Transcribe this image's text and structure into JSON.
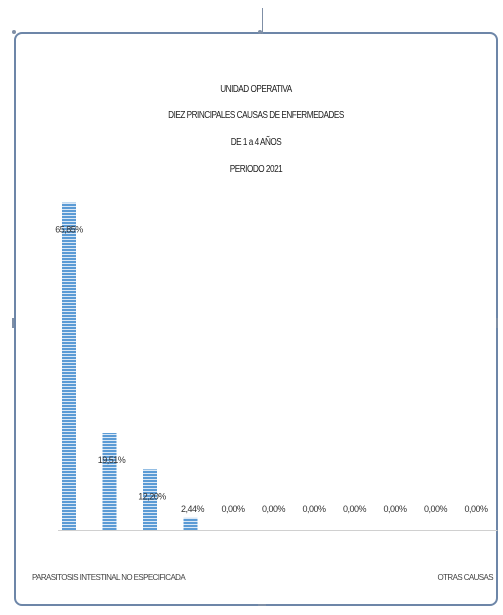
{
  "chart_data": {
    "type": "bar",
    "title_lines": [
      "UNIDAD OPERATIVA",
      "DIEZ PRINCIPALES CAUSAS DE ENFERMEDADES",
      "DE 1 a 4 AÑOS",
      "PERIODO 2021"
    ],
    "categories": [
      "PARASITOSIS INTESTINAL NO ESPECIFICADA",
      "",
      "",
      "",
      "",
      "",
      "",
      "",
      "",
      "",
      "OTRAS CAUSAS"
    ],
    "values": [
      65.85,
      19.51,
      12.2,
      2.44,
      0.0,
      0.0,
      0.0,
      0.0,
      0.0,
      0.0,
      0.0
    ],
    "data_labels": [
      "65,85%",
      "19,51%",
      "12,20%",
      "2,44%",
      "0,00%",
      "0,00%",
      "0,00%",
      "0,00%",
      "0,00%",
      "0,00%",
      "0,00%"
    ],
    "ylim": [
      0,
      70
    ],
    "xlabel": "",
    "ylabel": "",
    "grid": false,
    "legend": "none",
    "bar_color": "#5b9bd5"
  }
}
